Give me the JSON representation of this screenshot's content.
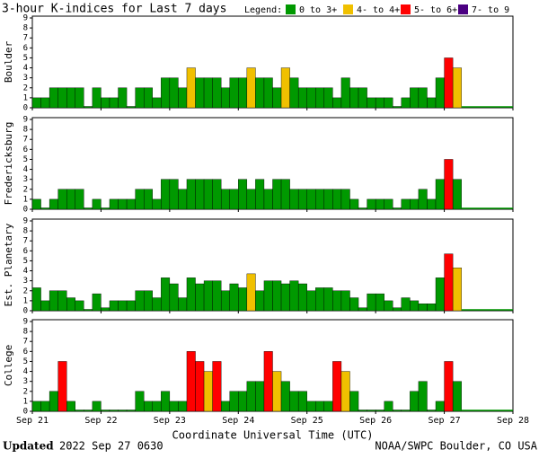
{
  "header": {
    "title": "3-hour K-indices for Last 7 days",
    "legend_label": "Legend:",
    "legend": [
      {
        "label": "0 to 3+",
        "color": "#009900"
      },
      {
        "label": "4- to 4+",
        "color": "#f0c000"
      },
      {
        "label": "5- to 6+",
        "color": "#ff0000"
      },
      {
        "label": "7- to 9",
        "color": "#4b0082"
      }
    ]
  },
  "chart_data": [
    {
      "type": "bar",
      "title": "Boulder",
      "ylim": [
        0,
        9
      ],
      "yticks": [
        0,
        1,
        2,
        3,
        4,
        5,
        6,
        7,
        8,
        9
      ],
      "values": [
        1,
        1,
        2,
        2,
        2,
        2,
        0,
        2,
        1,
        1,
        2,
        0,
        2,
        2,
        1,
        3,
        3,
        2,
        4,
        3,
        3,
        3,
        2,
        3,
        3,
        4,
        3,
        3,
        2,
        4,
        3,
        2,
        2,
        2,
        2,
        1,
        3,
        2,
        2,
        1,
        1,
        1,
        0,
        1,
        2,
        2,
        1,
        3,
        5,
        4
      ]
    },
    {
      "type": "bar",
      "title": "Fredericksburg",
      "ylim": [
        0,
        9
      ],
      "yticks": [
        0,
        1,
        2,
        3,
        4,
        5,
        6,
        7,
        8,
        9
      ],
      "values": [
        1,
        0,
        1,
        2,
        2,
        2,
        0,
        1,
        0,
        1,
        1,
        1,
        2,
        2,
        1,
        3,
        3,
        2,
        3,
        3,
        3,
        3,
        2,
        2,
        3,
        2,
        3,
        2,
        3,
        3,
        2,
        2,
        2,
        2,
        2,
        2,
        2,
        1,
        0,
        1,
        1,
        1,
        0,
        1,
        1,
        2,
        1,
        3,
        5,
        3
      ]
    },
    {
      "type": "bar",
      "title": "Est. Planetary",
      "ylim": [
        0,
        9
      ],
      "yticks": [
        0,
        1,
        2,
        3,
        4,
        5,
        6,
        7,
        8,
        9
      ],
      "values": [
        2.3,
        1,
        2,
        2,
        1.3,
        1,
        0,
        1.7,
        0.3,
        1,
        1,
        1,
        2,
        2,
        1.3,
        3.3,
        2.7,
        1.3,
        3.3,
        2.7,
        3,
        3,
        2,
        2.7,
        2.3,
        3.7,
        2,
        3,
        3,
        2.7,
        3,
        2.7,
        2,
        2.3,
        2.3,
        2,
        2,
        1.3,
        0.3,
        1.7,
        1.7,
        1,
        0.3,
        1.3,
        1,
        0.7,
        0.7,
        3.3,
        5.7,
        4.3
      ]
    },
    {
      "type": "bar",
      "title": "College",
      "ylim": [
        0,
        9
      ],
      "yticks": [
        0,
        1,
        2,
        3,
        4,
        5,
        6,
        7,
        8,
        9
      ],
      "values": [
        1,
        1,
        2,
        5,
        1,
        0,
        0,
        1,
        0,
        0,
        0,
        0,
        2,
        1,
        1,
        2,
        1,
        1,
        6,
        5,
        4,
        5,
        1,
        2,
        2,
        3,
        3,
        6,
        4,
        3,
        2,
        2,
        1,
        1,
        1,
        5,
        4,
        2,
        0,
        0,
        0,
        1,
        0,
        0,
        2,
        3,
        0,
        1,
        5,
        3
      ],
      "xticks": [
        "Sep 21",
        "Sep 22",
        "Sep 23",
        "Sep 24",
        "Sep 25",
        "Sep 26",
        "Sep 27",
        "Sep 28"
      ],
      "xlabel": "Coordinate Universal Time (UTC)"
    }
  ],
  "footer": {
    "updated_label": "Updated",
    "updated": "2022 Sep 27 0630",
    "source": "NOAA/SWPC Boulder, CO USA"
  }
}
